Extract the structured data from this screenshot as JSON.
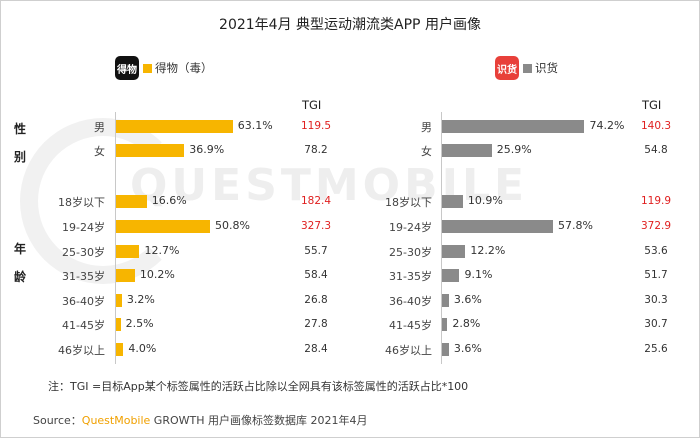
{
  "title": "2021年4月 典型运动潮流类APP 用户画像",
  "watermark": "QUESTMOBILE",
  "group_labels": {
    "gender": [
      "性",
      "别"
    ],
    "age": [
      "年",
      "龄"
    ]
  },
  "tgi_header": "TGI",
  "note": "注：TGI =目标App某个标签属性的活跃占比除以全网具有该标签属性的活跃占比*100",
  "source": {
    "prefix": "Source：",
    "brand": "QuestMobile",
    "suffix": " GROWTH 用户画像标签数据库 2021年4月"
  },
  "colors": {
    "dewu": "#f7b500",
    "shihuo": "#8a8a8a",
    "tgi_high": "#e02020",
    "tgi_normal": "#333333"
  },
  "chart_data": [
    {
      "type": "bar",
      "orientation": "horizontal",
      "app_logo_text": "得物",
      "legend": "得物（毒）",
      "categories": [
        "男",
        "女",
        "18岁以下",
        "19-24岁",
        "25-30岁",
        "31-35岁",
        "36-40岁",
        "41-45岁",
        "46岁以上"
      ],
      "values": [
        63.1,
        36.9,
        16.6,
        50.8,
        12.7,
        10.2,
        3.2,
        2.5,
        4.0
      ],
      "value_labels": [
        "63.1%",
        "36.9%",
        "16.6%",
        "50.8%",
        "12.7%",
        "10.2%",
        "3.2%",
        "2.5%",
        "4.0%"
      ],
      "tgi": [
        "119.5",
        "78.2",
        "182.4",
        "327.3",
        "55.7",
        "58.4",
        "26.8",
        "27.8",
        "28.4"
      ],
      "tgi_highlight": [
        true,
        false,
        true,
        true,
        false,
        false,
        false,
        false,
        false
      ]
    },
    {
      "type": "bar",
      "orientation": "horizontal",
      "app_logo_text": "识货",
      "legend": "识货",
      "categories": [
        "男",
        "女",
        "18岁以下",
        "19-24岁",
        "25-30岁",
        "31-35岁",
        "36-40岁",
        "41-45岁",
        "46岁以上"
      ],
      "values": [
        74.2,
        25.9,
        10.9,
        57.8,
        12.2,
        9.1,
        3.6,
        2.8,
        3.6
      ],
      "value_labels": [
        "74.2%",
        "25.9%",
        "10.9%",
        "57.8%",
        "12.2%",
        "9.1%",
        "3.6%",
        "2.8%",
        "3.6%"
      ],
      "tgi": [
        "140.3",
        "54.8",
        "119.9",
        "372.9",
        "53.6",
        "51.7",
        "30.3",
        "30.7",
        "25.6"
      ],
      "tgi_highlight": [
        true,
        false,
        true,
        true,
        false,
        false,
        false,
        false,
        false
      ]
    }
  ]
}
